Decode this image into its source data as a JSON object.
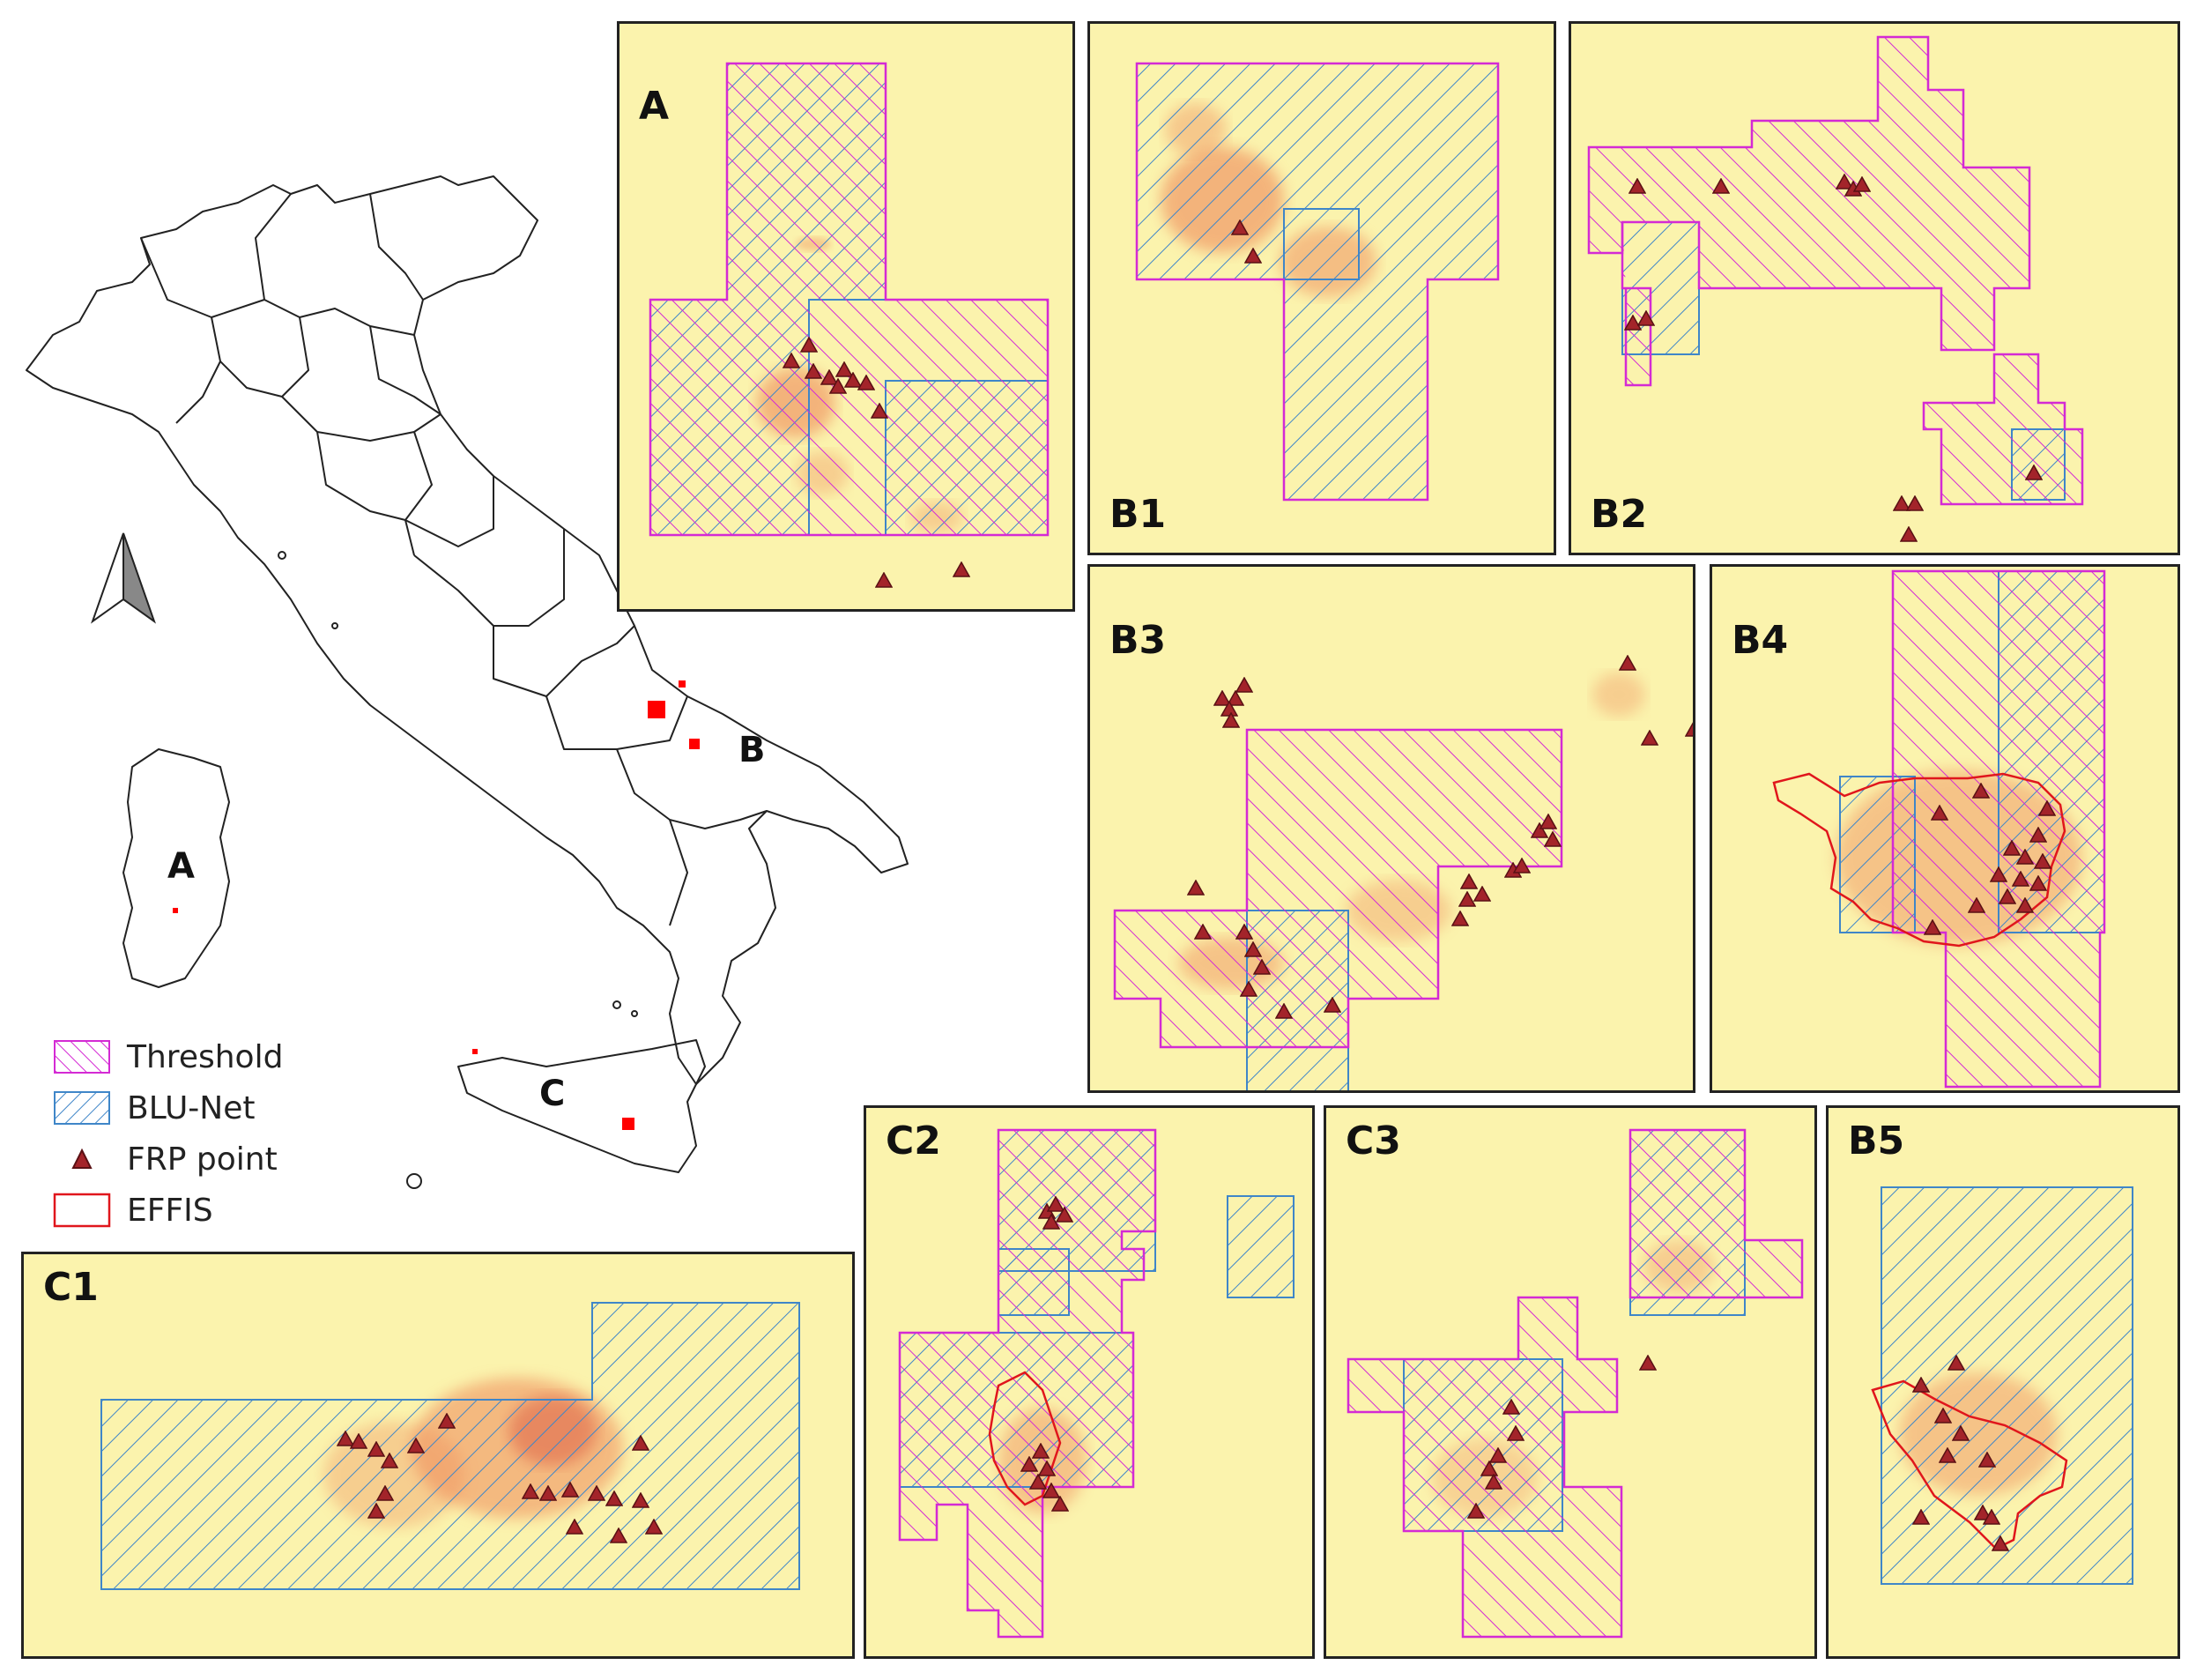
{
  "overview": {
    "region_labels": [
      "A",
      "B",
      "C"
    ],
    "north_arrow": "north-arrow-icon"
  },
  "legend": [
    {
      "label": "Threshold",
      "symbol": "threshold-hatch",
      "color": "#d42ad4"
    },
    {
      "label": "BLU-Net",
      "symbol": "blunet-hatch",
      "color": "#3f86c8"
    },
    {
      "label": "FRP point",
      "symbol": "frp-triangle",
      "color": "#a3242a"
    },
    {
      "label": "EFFIS",
      "symbol": "effis-outline",
      "color": "#e0161c"
    }
  ],
  "panels": [
    {
      "id": "A",
      "label": "A"
    },
    {
      "id": "B1",
      "label": "B1"
    },
    {
      "id": "B2",
      "label": "B2"
    },
    {
      "id": "B3",
      "label": "B3"
    },
    {
      "id": "B4",
      "label": "B4"
    },
    {
      "id": "C1",
      "label": "C1"
    },
    {
      "id": "C2",
      "label": "C2"
    },
    {
      "id": "C3",
      "label": "C3"
    },
    {
      "id": "B5",
      "label": "B5"
    }
  ],
  "colors": {
    "background": "#fbf3ad",
    "burn": "#ef8a5a",
    "vegetation": "#c9e8a0",
    "threshold": "#d42ad4",
    "blunet": "#3f86c8",
    "frp": "#a3242a",
    "effis": "#e0161c"
  }
}
